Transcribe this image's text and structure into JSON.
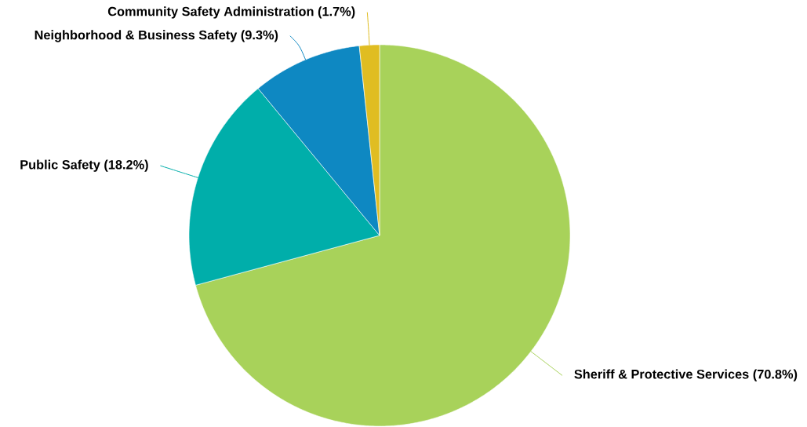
{
  "chart_data": {
    "type": "pie",
    "categories": [
      "Sheriff & Protective Services",
      "Public Safety",
      "Neighborhood & Business Safety",
      "Community Safety Administration"
    ],
    "values": [
      70.8,
      18.2,
      9.3,
      1.7
    ],
    "colors": [
      "#a8d25a",
      "#00aeaa",
      "#0e88c2",
      "#e0bd22"
    ],
    "value_labels": [
      "(70.8%)",
      "(18.2%)",
      "(9.3%)",
      "(1.7%)"
    ]
  }
}
